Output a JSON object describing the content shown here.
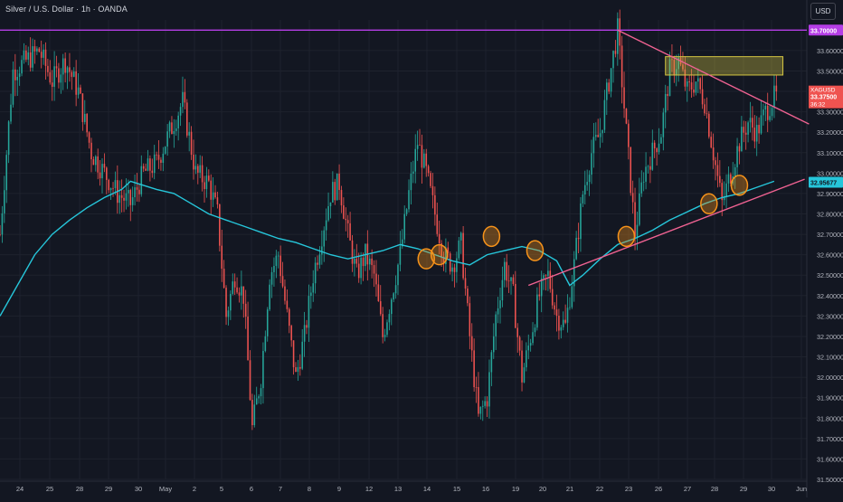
{
  "header": {
    "title": "Silver / U.S. Dollar · 1h · OANDA",
    "currency": "USD"
  },
  "colors": {
    "background": "#131722",
    "grid": "#1e222d",
    "up": "#26a69a",
    "down": "#ef5350",
    "ma": "#26c6da",
    "resistance": "#b53ee6",
    "trendline": "#f06292",
    "marker": "#f7931a",
    "zone": "#d4c642",
    "axis_text": "#b2b5be"
  },
  "icons": {
    "marker": "circle-marker-icon"
  },
  "price_labels": {
    "resistance": "33.70000",
    "symbol": "XAGUSD",
    "last": "33.37500",
    "countdown": "36:32",
    "ma": "32.95677"
  },
  "chart_data": {
    "type": "candlestick",
    "symbol": "XAGUSD",
    "interval": "1h",
    "ylim": [
      31.5,
      33.75
    ],
    "y_ticks": [
      "33.60000",
      "33.50000",
      "33.40000",
      "33.30000",
      "33.20000",
      "33.10000",
      "33.00000",
      "32.90000",
      "32.80000",
      "32.70000",
      "32.60000",
      "32.50000",
      "32.40000",
      "32.30000",
      "32.20000",
      "32.10000",
      "32.00000",
      "31.90000",
      "31.80000",
      "31.70000",
      "31.60000",
      "31.50000"
    ],
    "x_ticks": [
      "24",
      "25",
      "28",
      "29",
      "30",
      "May",
      "2",
      "5",
      "6",
      "7",
      "8",
      "9",
      "12",
      "13",
      "14",
      "15",
      "16",
      "19",
      "20",
      "21",
      "22",
      "23",
      "26",
      "27",
      "28",
      "29",
      "30",
      "Jun"
    ],
    "price_path": [
      [
        0,
        32.7
      ],
      [
        6,
        33.5
      ],
      [
        12,
        33.55
      ],
      [
        18,
        33.6
      ],
      [
        24,
        33.45
      ],
      [
        30,
        33.55
      ],
      [
        36,
        33.4
      ],
      [
        42,
        33.1
      ],
      [
        48,
        33.0
      ],
      [
        54,
        32.9
      ],
      [
        60,
        32.85
      ],
      [
        66,
        33.0
      ],
      [
        72,
        33.05
      ],
      [
        78,
        33.2
      ],
      [
        84,
        33.35
      ],
      [
        90,
        33.0
      ],
      [
        96,
        32.95
      ],
      [
        100,
        32.8
      ],
      [
        104,
        32.3
      ],
      [
        108,
        32.5
      ],
      [
        112,
        32.4
      ],
      [
        116,
        31.75
      ],
      [
        120,
        32.0
      ],
      [
        124,
        32.5
      ],
      [
        128,
        32.6
      ],
      [
        132,
        32.3
      ],
      [
        136,
        32.0
      ],
      [
        140,
        32.2
      ],
      [
        144,
        32.5
      ],
      [
        148,
        32.7
      ],
      [
        152,
        32.9
      ],
      [
        156,
        32.95
      ],
      [
        160,
        32.7
      ],
      [
        164,
        32.5
      ],
      [
        168,
        32.6
      ],
      [
        172,
        32.5
      ],
      [
        176,
        32.2
      ],
      [
        180,
        32.4
      ],
      [
        184,
        32.6
      ],
      [
        188,
        32.9
      ],
      [
        192,
        33.15
      ],
      [
        196,
        33.0
      ],
      [
        200,
        32.8
      ],
      [
        204,
        32.6
      ],
      [
        208,
        32.55
      ],
      [
        212,
        32.65
      ],
      [
        216,
        32.2
      ],
      [
        220,
        31.8
      ],
      [
        224,
        31.9
      ],
      [
        228,
        32.3
      ],
      [
        232,
        32.55
      ],
      [
        236,
        32.4
      ],
      [
        240,
        32.0
      ],
      [
        244,
        32.2
      ],
      [
        248,
        32.4
      ],
      [
        252,
        32.5
      ],
      [
        256,
        32.3
      ],
      [
        260,
        32.25
      ],
      [
        264,
        32.55
      ],
      [
        268,
        32.9
      ],
      [
        272,
        33.1
      ],
      [
        276,
        33.2
      ],
      [
        280,
        33.45
      ],
      [
        284,
        33.7
      ],
      [
        288,
        33.2
      ],
      [
        292,
        32.7
      ],
      [
        296,
        33.0
      ],
      [
        300,
        33.1
      ],
      [
        304,
        33.2
      ],
      [
        308,
        33.5
      ],
      [
        312,
        33.55
      ],
      [
        316,
        33.4
      ],
      [
        320,
        33.45
      ],
      [
        324,
        33.35
      ],
      [
        328,
        33.1
      ],
      [
        332,
        32.85
      ],
      [
        336,
        33.0
      ],
      [
        340,
        33.15
      ],
      [
        344,
        33.25
      ],
      [
        348,
        33.2
      ],
      [
        352,
        33.3
      ],
      [
        356,
        33.37
      ]
    ],
    "ma_path": [
      [
        0,
        32.3
      ],
      [
        8,
        32.45
      ],
      [
        16,
        32.6
      ],
      [
        24,
        32.7
      ],
      [
        32,
        32.77
      ],
      [
        40,
        32.83
      ],
      [
        48,
        32.88
      ],
      [
        56,
        32.92
      ],
      [
        60,
        32.96
      ],
      [
        66,
        32.94
      ],
      [
        72,
        32.92
      ],
      [
        80,
        32.9
      ],
      [
        88,
        32.85
      ],
      [
        96,
        32.8
      ],
      [
        104,
        32.77
      ],
      [
        112,
        32.74
      ],
      [
        120,
        32.71
      ],
      [
        128,
        32.68
      ],
      [
        136,
        32.66
      ],
      [
        144,
        32.63
      ],
      [
        152,
        32.6
      ],
      [
        160,
        32.58
      ],
      [
        168,
        32.6
      ],
      [
        176,
        32.62
      ],
      [
        184,
        32.65
      ],
      [
        192,
        32.63
      ],
      [
        200,
        32.6
      ],
      [
        208,
        32.57
      ],
      [
        216,
        32.55
      ],
      [
        224,
        32.6
      ],
      [
        232,
        32.62
      ],
      [
        240,
        32.64
      ],
      [
        248,
        32.62
      ],
      [
        256,
        32.57
      ],
      [
        262,
        32.45
      ],
      [
        268,
        32.5
      ],
      [
        276,
        32.58
      ],
      [
        284,
        32.65
      ],
      [
        292,
        32.68
      ],
      [
        300,
        32.72
      ],
      [
        308,
        32.77
      ],
      [
        316,
        32.81
      ],
      [
        324,
        32.85
      ],
      [
        332,
        32.88
      ],
      [
        340,
        32.9
      ],
      [
        348,
        32.93
      ],
      [
        356,
        32.96
      ]
    ],
    "resistance_level": 33.7,
    "supply_zone": {
      "x0_index": 306,
      "x1_index": 360,
      "top": 33.57,
      "bottom": 33.48
    },
    "trend_upper": {
      "from": [
        284,
        33.7
      ],
      "to": [
        372,
        33.24
      ]
    },
    "trend_lower": {
      "from": [
        243,
        32.45
      ],
      "to": [
        370,
        32.97
      ]
    },
    "markers": [
      {
        "index": 196,
        "price": 32.58
      },
      {
        "index": 202,
        "price": 32.6
      },
      {
        "index": 226,
        "price": 32.69
      },
      {
        "index": 246,
        "price": 32.62
      },
      {
        "index": 288,
        "price": 32.69
      },
      {
        "index": 326,
        "price": 32.85
      },
      {
        "index": 340,
        "price": 32.94
      }
    ],
    "x_count": 372
  }
}
